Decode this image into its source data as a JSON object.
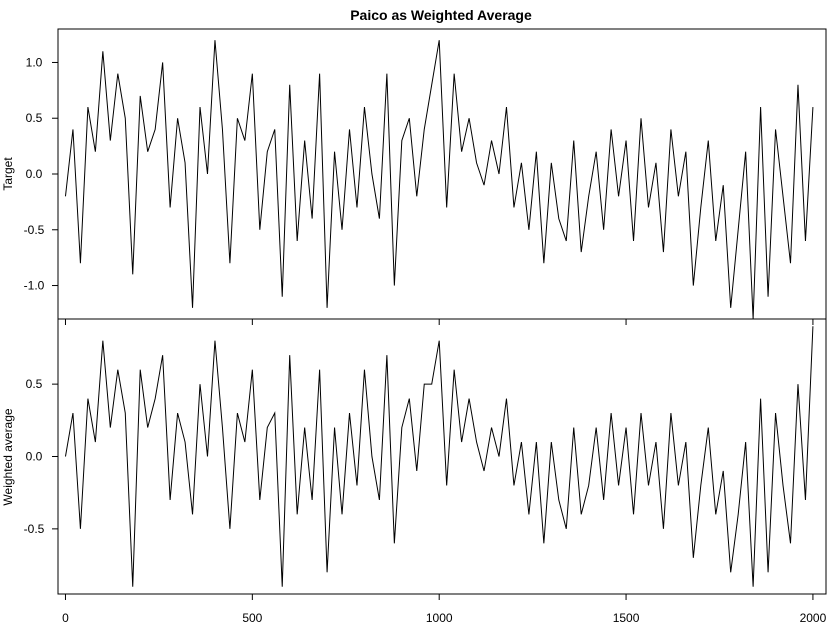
{
  "chart_data": [
    {
      "type": "line",
      "title": "Paico as Weighted Average",
      "ylabel": "Target",
      "xlabel": "",
      "xlim": [
        -20,
        2035
      ],
      "ylim": [
        -1.3,
        1.3
      ],
      "y_ticks": [
        -1.0,
        -0.5,
        0.0,
        0.5,
        1.0
      ],
      "y_tick_labels": [
        "-1.0",
        "-0.5",
        "0.0",
        "0.5",
        "1.0"
      ],
      "grid": false,
      "series": [
        {
          "x": [
            0,
            20,
            40,
            60,
            80,
            100,
            120,
            140,
            160,
            180,
            200,
            220,
            240,
            260,
            280,
            300,
            320,
            340,
            360,
            380,
            400,
            420,
            440,
            460,
            480,
            500,
            520,
            540,
            560,
            580,
            600,
            620,
            640,
            660,
            680,
            700,
            720,
            740,
            760,
            780,
            800,
            820,
            840,
            860,
            880,
            900,
            920,
            940,
            960,
            980,
            1000,
            1020,
            1040,
            1060,
            1080,
            1100,
            1120,
            1140,
            1160,
            1180,
            1200,
            1220,
            1240,
            1260,
            1280,
            1300,
            1320,
            1340,
            1360,
            1380,
            1400,
            1420,
            1440,
            1460,
            1480,
            1500,
            1520,
            1540,
            1560,
            1580,
            1600,
            1620,
            1640,
            1660,
            1680,
            1700,
            1720,
            1740,
            1760,
            1780,
            1800,
            1820,
            1840,
            1860,
            1880,
            1900,
            1920,
            1940,
            1960,
            1980,
            2000
          ],
          "y": [
            -0.2,
            0.4,
            -0.8,
            0.6,
            0.2,
            1.1,
            0.3,
            0.9,
            0.5,
            -0.9,
            0.7,
            0.2,
            0.4,
            1.0,
            -0.3,
            0.5,
            0.1,
            -1.2,
            0.6,
            0.0,
            1.2,
            0.4,
            -0.8,
            0.5,
            0.3,
            0.9,
            -0.5,
            0.2,
            0.4,
            -1.1,
            0.8,
            -0.6,
            0.3,
            -0.4,
            0.9,
            -1.2,
            0.2,
            -0.5,
            0.4,
            -0.3,
            0.6,
            0.0,
            -0.4,
            0.9,
            -1.0,
            0.3,
            0.5,
            -0.2,
            0.4,
            0.8,
            1.2,
            -0.3,
            0.9,
            0.2,
            0.5,
            0.1,
            -0.1,
            0.3,
            0.0,
            0.6,
            -0.3,
            0.1,
            -0.5,
            0.2,
            -0.8,
            0.1,
            -0.4,
            -0.6,
            0.3,
            -0.7,
            -0.2,
            0.2,
            -0.5,
            0.4,
            -0.2,
            0.3,
            -0.6,
            0.5,
            -0.3,
            0.1,
            -0.7,
            0.4,
            -0.2,
            0.2,
            -1.0,
            -0.3,
            0.3,
            -0.6,
            -0.1,
            -1.2,
            -0.5,
            0.2,
            -1.3,
            0.6,
            -1.1,
            0.4,
            -0.2,
            -0.8,
            0.8,
            -0.6,
            0.6
          ]
        }
      ]
    },
    {
      "type": "line",
      "title": "",
      "ylabel": "Weighted average",
      "xlabel": "",
      "xlim": [
        -20,
        2035
      ],
      "ylim": [
        -0.95,
        0.95
      ],
      "x_ticks": [
        0,
        500,
        1000,
        1500,
        2000
      ],
      "x_tick_labels": [
        "0",
        "500",
        "1000",
        "1500",
        "2000"
      ],
      "y_ticks": [
        -0.5,
        0.0,
        0.5
      ],
      "y_tick_labels": [
        "-0.5",
        "0.0",
        "0.5"
      ],
      "grid": false,
      "series": [
        {
          "x": [
            0,
            20,
            40,
            60,
            80,
            100,
            120,
            140,
            160,
            180,
            200,
            220,
            240,
            260,
            280,
            300,
            320,
            340,
            360,
            380,
            400,
            420,
            440,
            460,
            480,
            500,
            520,
            540,
            560,
            580,
            600,
            620,
            640,
            660,
            680,
            700,
            720,
            740,
            760,
            780,
            800,
            820,
            840,
            860,
            880,
            900,
            920,
            940,
            960,
            980,
            1000,
            1020,
            1040,
            1060,
            1080,
            1100,
            1120,
            1140,
            1160,
            1180,
            1200,
            1220,
            1240,
            1260,
            1280,
            1300,
            1320,
            1340,
            1360,
            1380,
            1400,
            1420,
            1440,
            1460,
            1480,
            1500,
            1520,
            1540,
            1560,
            1580,
            1600,
            1620,
            1640,
            1660,
            1680,
            1700,
            1720,
            1740,
            1760,
            1780,
            1800,
            1820,
            1840,
            1860,
            1880,
            1900,
            1920,
            1940,
            1960,
            1980,
            2000
          ],
          "y": [
            0.0,
            0.3,
            -0.5,
            0.4,
            0.1,
            0.8,
            0.2,
            0.6,
            0.3,
            -0.9,
            0.6,
            0.2,
            0.4,
            0.7,
            -0.3,
            0.3,
            0.1,
            -0.4,
            0.5,
            0.0,
            0.8,
            0.2,
            -0.5,
            0.3,
            0.1,
            0.6,
            -0.3,
            0.2,
            0.3,
            -0.9,
            0.7,
            -0.4,
            0.2,
            -0.3,
            0.6,
            -0.8,
            0.2,
            -0.4,
            0.3,
            -0.2,
            0.6,
            0.0,
            -0.3,
            0.7,
            -0.6,
            0.2,
            0.4,
            -0.1,
            0.5,
            0.5,
            0.8,
            -0.2,
            0.6,
            0.1,
            0.4,
            0.1,
            -0.1,
            0.2,
            0.0,
            0.4,
            -0.2,
            0.1,
            -0.4,
            0.1,
            -0.6,
            0.1,
            -0.3,
            -0.5,
            0.2,
            -0.4,
            -0.2,
            0.2,
            -0.3,
            0.3,
            -0.2,
            0.2,
            -0.4,
            0.3,
            -0.2,
            0.1,
            -0.5,
            0.3,
            -0.2,
            0.1,
            -0.7,
            -0.2,
            0.2,
            -0.4,
            -0.1,
            -0.8,
            -0.4,
            0.1,
            -0.9,
            0.4,
            -0.8,
            0.3,
            -0.2,
            -0.6,
            0.5,
            -0.3,
            0.9
          ]
        }
      ]
    }
  ]
}
